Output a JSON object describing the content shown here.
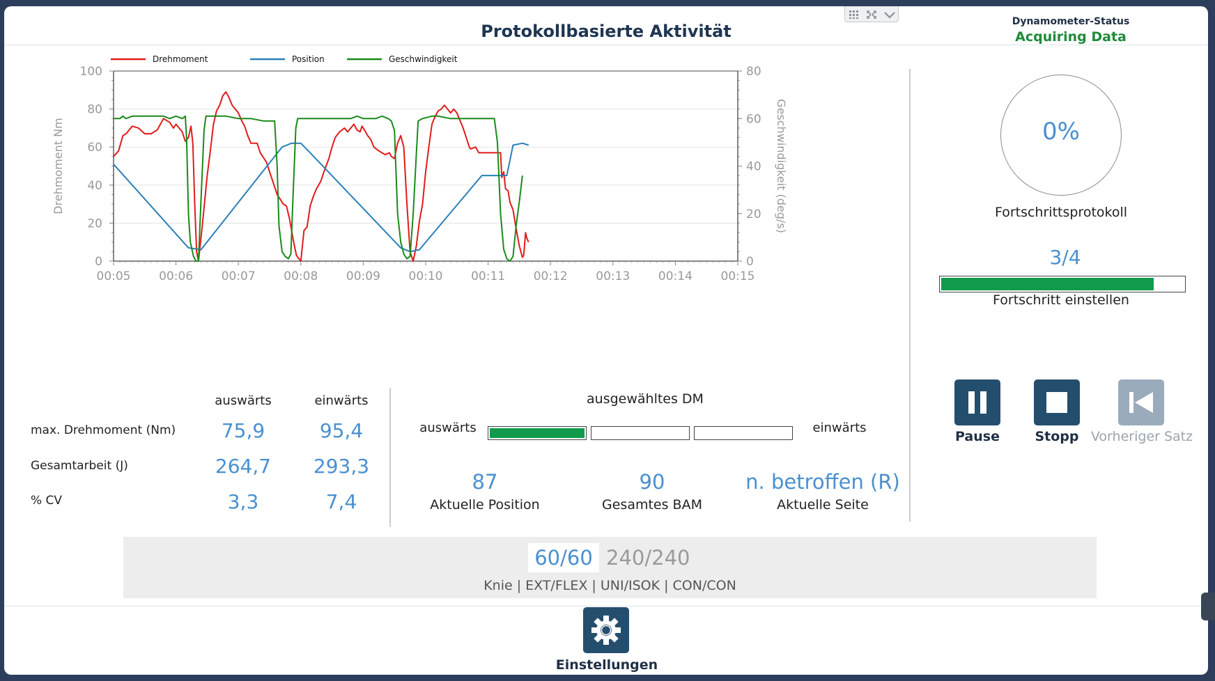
{
  "header": {
    "title": "Protokollbasierte Aktivität",
    "status_label": "Dynamometer-Status",
    "status_value": "Acquiring Data",
    "status_color": "#1f8a3a"
  },
  "chart_data": {
    "type": "line",
    "legend": [
      "Drehmoment",
      "Position",
      "Geschwindigkeit"
    ],
    "legend_placement": "top-left",
    "colors": {
      "Drehmoment": "#e01b1b",
      "Position": "#2a7fb8",
      "Geschwindigkeit": "#1a8a1a"
    },
    "x_ticks": [
      "00:05",
      "00:06",
      "00:07",
      "00:08",
      "00:09",
      "00:10",
      "00:11",
      "00:12",
      "00:13",
      "00:14",
      "00:15"
    ],
    "xlim": [
      5,
      15
    ],
    "ylabel": "Drehmoment Nm",
    "ylim": [
      0,
      100
    ],
    "y_ticks": [
      "0",
      "20",
      "40",
      "60",
      "80",
      "100"
    ],
    "y2label": "Geschwindigkeit (deg/s)",
    "y2lim": [
      0,
      80
    ],
    "y2_ticks": [
      "0",
      "20",
      "40",
      "60",
      "80"
    ],
    "grid": true,
    "series": [
      {
        "name": "Drehmoment",
        "axis": "left",
        "points": [
          [
            5.0,
            55
          ],
          [
            5.08,
            58
          ],
          [
            5.15,
            66
          ],
          [
            5.2,
            67
          ],
          [
            5.3,
            71
          ],
          [
            5.4,
            70
          ],
          [
            5.5,
            67
          ],
          [
            5.6,
            67
          ],
          [
            5.7,
            69
          ],
          [
            5.8,
            75
          ],
          [
            5.9,
            73
          ],
          [
            5.96,
            70
          ],
          [
            6.0,
            72
          ],
          [
            6.05,
            70
          ],
          [
            6.1,
            68
          ],
          [
            6.15,
            63
          ],
          [
            6.2,
            65
          ],
          [
            6.24,
            71
          ],
          [
            6.27,
            62
          ],
          [
            6.3,
            30
          ],
          [
            6.33,
            5
          ],
          [
            6.36,
            0
          ],
          [
            6.42,
            18
          ],
          [
            6.5,
            45
          ],
          [
            6.55,
            58
          ],
          [
            6.6,
            72
          ],
          [
            6.65,
            79
          ],
          [
            6.7,
            82
          ],
          [
            6.75,
            87
          ],
          [
            6.8,
            89
          ],
          [
            6.85,
            86
          ],
          [
            6.9,
            82
          ],
          [
            6.95,
            80
          ],
          [
            7.0,
            78
          ],
          [
            7.05,
            74
          ],
          [
            7.1,
            71
          ],
          [
            7.15,
            66
          ],
          [
            7.2,
            62
          ],
          [
            7.3,
            62
          ],
          [
            7.35,
            57
          ],
          [
            7.45,
            52
          ],
          [
            7.5,
            47
          ],
          [
            7.55,
            42
          ],
          [
            7.62,
            35
          ],
          [
            7.68,
            32
          ],
          [
            7.72,
            30
          ],
          [
            7.77,
            29
          ],
          [
            7.82,
            22
          ],
          [
            7.88,
            11
          ],
          [
            7.93,
            3
          ],
          [
            8.0,
            0
          ],
          [
            8.05,
            16
          ],
          [
            8.1,
            18
          ],
          [
            8.15,
            29
          ],
          [
            8.2,
            34
          ],
          [
            8.25,
            38
          ],
          [
            8.32,
            42
          ],
          [
            8.37,
            47
          ],
          [
            8.45,
            54
          ],
          [
            8.5,
            60
          ],
          [
            8.55,
            65
          ],
          [
            8.62,
            68
          ],
          [
            8.7,
            70
          ],
          [
            8.75,
            68
          ],
          [
            8.8,
            70
          ],
          [
            8.85,
            72
          ],
          [
            8.9,
            69
          ],
          [
            8.95,
            68
          ],
          [
            8.98,
            71
          ],
          [
            9.02,
            69
          ],
          [
            9.07,
            66
          ],
          [
            9.12,
            64
          ],
          [
            9.17,
            60
          ],
          [
            9.25,
            58
          ],
          [
            9.3,
            57
          ],
          [
            9.35,
            56
          ],
          [
            9.42,
            57
          ],
          [
            9.45,
            55
          ],
          [
            9.5,
            54
          ],
          [
            9.55,
            62
          ],
          [
            9.6,
            66
          ],
          [
            9.65,
            60
          ],
          [
            9.7,
            30
          ],
          [
            9.75,
            5
          ],
          [
            9.8,
            0
          ],
          [
            9.85,
            8
          ],
          [
            9.9,
            21
          ],
          [
            9.95,
            30
          ],
          [
            10.0,
            47
          ],
          [
            10.05,
            60
          ],
          [
            10.1,
            72
          ],
          [
            10.15,
            76
          ],
          [
            10.2,
            79
          ],
          [
            10.25,
            80
          ],
          [
            10.3,
            82
          ],
          [
            10.35,
            80
          ],
          [
            10.4,
            78
          ],
          [
            10.45,
            80
          ],
          [
            10.5,
            78
          ],
          [
            10.55,
            74
          ],
          [
            10.6,
            70
          ],
          [
            10.65,
            65
          ],
          [
            10.7,
            60
          ],
          [
            10.72,
            59
          ],
          [
            10.8,
            60
          ],
          [
            10.85,
            57
          ],
          [
            10.95,
            57
          ],
          [
            11.0,
            57
          ],
          [
            11.05,
            57
          ],
          [
            11.1,
            57
          ],
          [
            11.15,
            57
          ],
          [
            11.2,
            57
          ],
          [
            11.22,
            44
          ],
          [
            11.25,
            47
          ],
          [
            11.28,
            38
          ],
          [
            11.32,
            37
          ],
          [
            11.35,
            31
          ],
          [
            11.4,
            27
          ],
          [
            11.45,
            17
          ],
          [
            11.5,
            8
          ],
          [
            11.55,
            2
          ],
          [
            11.57,
            3
          ],
          [
            11.6,
            15
          ],
          [
            11.62,
            12
          ],
          [
            11.65,
            10
          ]
        ]
      },
      {
        "name": "Position",
        "axis": "left",
        "points": [
          [
            5.0,
            51
          ],
          [
            6.2,
            7
          ],
          [
            6.4,
            6
          ],
          [
            7.7,
            60
          ],
          [
            7.85,
            62
          ],
          [
            8.0,
            62
          ],
          [
            8.15,
            57
          ],
          [
            9.6,
            7
          ],
          [
            9.75,
            5
          ],
          [
            9.9,
            6
          ],
          [
            10.9,
            45
          ],
          [
            11.3,
            45
          ],
          [
            11.4,
            61
          ],
          [
            11.55,
            62
          ],
          [
            11.65,
            61
          ]
        ]
      },
      {
        "name": "Geschwindigkeit",
        "axis": "right",
        "points": [
          [
            5.0,
            60
          ],
          [
            5.1,
            60
          ],
          [
            5.15,
            61
          ],
          [
            5.2,
            60
          ],
          [
            5.3,
            61
          ],
          [
            5.5,
            61
          ],
          [
            5.6,
            61
          ],
          [
            5.8,
            61
          ],
          [
            5.9,
            60
          ],
          [
            6.0,
            61
          ],
          [
            6.1,
            60
          ],
          [
            6.15,
            61
          ],
          [
            6.17,
            52
          ],
          [
            6.2,
            20
          ],
          [
            6.23,
            8
          ],
          [
            6.28,
            2
          ],
          [
            6.32,
            0
          ],
          [
            6.36,
            0
          ],
          [
            6.4,
            25
          ],
          [
            6.45,
            55
          ],
          [
            6.48,
            61
          ],
          [
            6.6,
            61
          ],
          [
            6.8,
            61
          ],
          [
            7.0,
            60
          ],
          [
            7.2,
            60
          ],
          [
            7.4,
            59
          ],
          [
            7.5,
            59
          ],
          [
            7.58,
            59
          ],
          [
            7.62,
            40
          ],
          [
            7.65,
            15
          ],
          [
            7.7,
            4
          ],
          [
            7.75,
            2
          ],
          [
            7.8,
            1
          ],
          [
            7.84,
            3
          ],
          [
            7.88,
            30
          ],
          [
            7.92,
            56
          ],
          [
            7.95,
            60
          ],
          [
            8.2,
            60
          ],
          [
            8.4,
            60
          ],
          [
            8.6,
            60
          ],
          [
            8.8,
            60
          ],
          [
            8.9,
            61
          ],
          [
            9.0,
            60
          ],
          [
            9.2,
            60
          ],
          [
            9.3,
            61
          ],
          [
            9.4,
            60
          ],
          [
            9.45,
            59
          ],
          [
            9.5,
            55
          ],
          [
            9.55,
            20
          ],
          [
            9.6,
            8
          ],
          [
            9.65,
            3
          ],
          [
            9.7,
            1
          ],
          [
            9.75,
            2
          ],
          [
            9.8,
            20
          ],
          [
            9.85,
            45
          ],
          [
            9.88,
            59
          ],
          [
            9.95,
            60
          ],
          [
            10.1,
            61
          ],
          [
            10.2,
            61
          ],
          [
            10.4,
            60
          ],
          [
            10.6,
            60
          ],
          [
            10.8,
            60
          ],
          [
            11.0,
            60
          ],
          [
            11.1,
            60
          ],
          [
            11.15,
            50
          ],
          [
            11.2,
            20
          ],
          [
            11.25,
            5
          ],
          [
            11.3,
            1
          ],
          [
            11.35,
            0
          ],
          [
            11.4,
            2
          ],
          [
            11.45,
            15
          ],
          [
            11.5,
            25
          ],
          [
            11.55,
            36
          ]
        ]
      }
    ]
  },
  "progress": {
    "percent": "0%",
    "protocol_label": "Fortschrittsprotokoll",
    "set_count": "3/4",
    "set_fraction": 0.875,
    "set_label": "Fortschritt einstellen"
  },
  "controls": {
    "pause": {
      "label": "Pause",
      "icon": "pause-icon",
      "color": "#244e6d"
    },
    "stop": {
      "label": "Stopp",
      "icon": "stop-icon",
      "color": "#244e6d"
    },
    "previous": {
      "label": "Vorheriger Satz",
      "icon": "skip-back-icon",
      "color": "#9aabbb"
    }
  },
  "stats": {
    "col_out": "auswärts",
    "col_in": "einwärts",
    "rows": [
      {
        "label": "max. Drehmoment (Nm)",
        "out": "75,9",
        "in": "95,4"
      },
      {
        "label": "Gesamtarbeit (J)",
        "out": "264,7",
        "in": "293,3"
      },
      {
        "label": "% CV",
        "out": "3,3",
        "in": "7,4"
      }
    ]
  },
  "dm": {
    "title": "ausgewähltes DM",
    "left_label": "auswärts",
    "right_label": "einwärts",
    "segments": [
      1,
      0,
      0
    ]
  },
  "info": [
    {
      "value": "87",
      "label": "Aktuelle Position"
    },
    {
      "value": "90",
      "label": "Gesamtes BAM"
    },
    {
      "value": "n. betroffen (R)",
      "label": "Aktuelle Seite"
    }
  ],
  "reps": {
    "active": "60/60",
    "inactive": "240/240",
    "description": "Knie | EXT/FLEX | UNI/ISOK | CON/CON"
  },
  "footer": {
    "settings_label": "Einstellungen",
    "settings_icon": "gear-icon"
  }
}
